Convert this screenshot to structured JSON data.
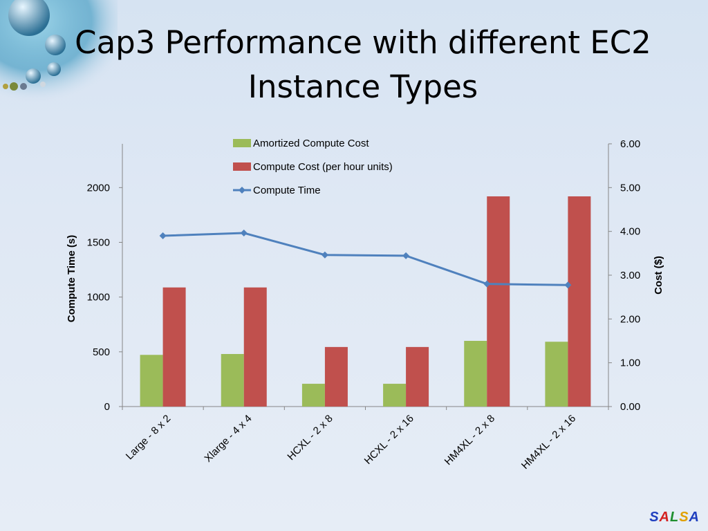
{
  "slide": {
    "title_line1": "Cap3 Performance with different EC2",
    "title_line2": "Instance Types",
    "brand": [
      "S",
      "A",
      "L",
      "S",
      "A"
    ],
    "brand_colors": [
      "#1f3fbf",
      "#d42020",
      "#1f8f2f",
      "#e0a000",
      "#1f3fbf"
    ]
  },
  "chart_data": {
    "type": "bar",
    "categories": [
      "Large - 8 x 2",
      "Xlarge - 4 x 4",
      "HCXL - 2 x 8",
      "HCXL - 2 x 16",
      "HM4XL - 2 x 8",
      "HM4XL - 2 x 16"
    ],
    "series": [
      {
        "name": "Amortized Compute Cost",
        "type": "bar",
        "axis": "right",
        "color": "#9bbb59",
        "values": [
          1.18,
          1.2,
          0.52,
          0.52,
          1.5,
          1.48
        ]
      },
      {
        "name": "Compute Cost (per hour units)",
        "type": "bar",
        "axis": "right",
        "color": "#c0504d",
        "values": [
          2.72,
          2.72,
          1.36,
          1.36,
          4.8,
          4.8
        ]
      },
      {
        "name": "Compute Time",
        "type": "line",
        "axis": "left",
        "color": "#4f81bd",
        "marker": "diamond",
        "values": [
          1560,
          1585,
          1385,
          1378,
          1120,
          1110
        ]
      }
    ],
    "ylabel": "Compute Time (s)",
    "y2label": "Cost ($)",
    "ylim": [
      0,
      2400
    ],
    "yticks": [
      "0",
      "500",
      "1000",
      "1500",
      "2000"
    ],
    "y2lim": [
      0,
      6
    ],
    "y2ticks": [
      "0.00",
      "1.00",
      "2.00",
      "3.00",
      "4.00",
      "5.00",
      "6.00"
    ],
    "legend_position": "top-center",
    "grid": false
  }
}
